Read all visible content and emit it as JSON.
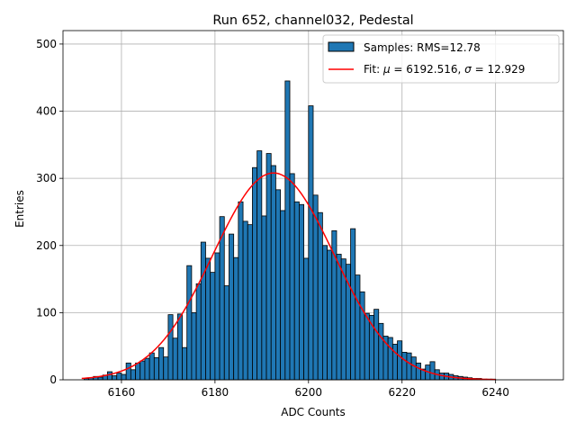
{
  "chart_data": {
    "type": "bar",
    "title": "Run 652, channel032, Pedestal",
    "xlabel": "ADC Counts",
    "ylabel": "Entries",
    "xlim": [
      6147.5,
      6254.5
    ],
    "ylim": [
      0,
      520
    ],
    "xticks": [
      6160,
      6180,
      6200,
      6220,
      6240
    ],
    "yticks": [
      0,
      100,
      200,
      300,
      400,
      500
    ],
    "grid": true,
    "legend_position": "top-right",
    "bin_width": 1,
    "bin_start": 6152,
    "series": [
      {
        "name": "Samples: RMS=12.78",
        "kind": "histogram",
        "color": "#1f77b4",
        "edge_color": "#000000",
        "values": [
          2,
          3,
          5,
          4,
          7,
          12,
          6,
          10,
          8,
          25,
          15,
          25,
          28,
          32,
          40,
          33,
          48,
          34,
          97,
          62,
          98,
          48,
          170,
          100,
          143,
          205,
          181,
          160,
          189,
          243,
          140,
          217,
          182,
          265,
          236,
          231,
          316,
          341,
          244,
          337,
          319,
          283,
          252,
          445,
          307,
          265,
          261,
          181,
          408,
          275,
          249,
          200,
          193,
          222,
          187,
          180,
          172,
          225,
          156,
          131,
          99,
          96,
          105,
          84,
          65,
          63,
          53,
          58,
          41,
          40,
          34,
          25,
          16,
          22,
          27,
          15,
          10,
          10,
          8,
          6,
          5,
          4,
          3,
          2,
          2,
          1,
          1,
          1
        ]
      },
      {
        "name": "Fit: μ = 6192.516, σ = 12.929",
        "kind": "gaussian_fit",
        "color": "#ff0000",
        "mu": 6192.516,
        "sigma": 12.929,
        "amplitude": 308,
        "x_range": [
          6151.5,
          6240
        ]
      }
    ]
  },
  "legend": {
    "entries": [
      {
        "label_prefix": "Samples: RMS=12.78",
        "label_suffix": ""
      },
      {
        "label_prefix": "Fit: ",
        "mu_symbol": "μ",
        "mid": " = 6192.516, ",
        "sigma_symbol": "σ",
        "tail": " = 12.929"
      }
    ]
  }
}
